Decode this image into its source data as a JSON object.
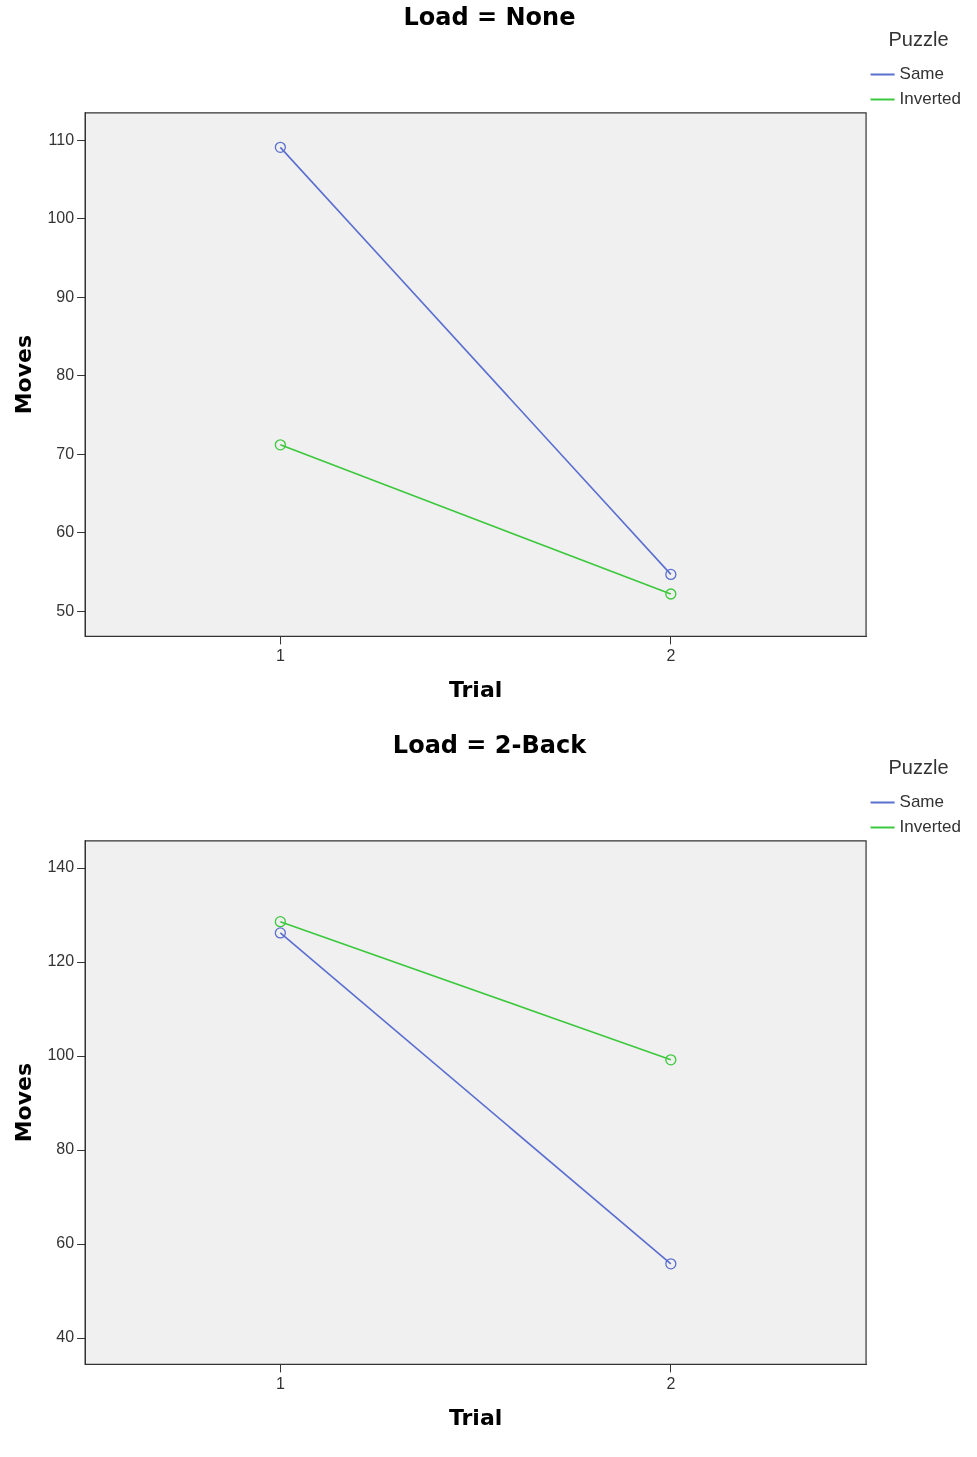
{
  "chart_data": [
    {
      "type": "line",
      "title": "Load = None",
      "xlabel": "Trial",
      "ylabel": "Moves",
      "legend_title": "Puzzle",
      "legend": "right",
      "marker": "circle",
      "grid": false,
      "categories": [
        "1",
        "2"
      ],
      "ylim": [
        46.8,
        113.5
      ],
      "yticks": [
        50,
        60,
        70,
        80,
        90,
        100,
        110
      ],
      "series": [
        {
          "name": "Same",
          "color": "#5a6ecf",
          "values": [
            109.1,
            54.7
          ]
        },
        {
          "name": "Inverted",
          "color": "#3cc83c",
          "values": [
            71.2,
            52.2
          ]
        }
      ]
    },
    {
      "type": "line",
      "title": "Load = 2-Back",
      "xlabel": "Trial",
      "ylabel": "Moves",
      "legend_title": "Puzzle",
      "legend": "right",
      "marker": "circle",
      "grid": false,
      "categories": [
        "1",
        "2"
      ],
      "ylim": [
        34.4,
        145.8
      ],
      "yticks": [
        40,
        60,
        80,
        100,
        120,
        140
      ],
      "series": [
        {
          "name": "Same",
          "color": "#5a6ecf",
          "values": [
            126.2,
            55.8
          ]
        },
        {
          "name": "Inverted",
          "color": "#3cc83c",
          "values": [
            128.6,
            99.2
          ]
        }
      ]
    }
  ]
}
